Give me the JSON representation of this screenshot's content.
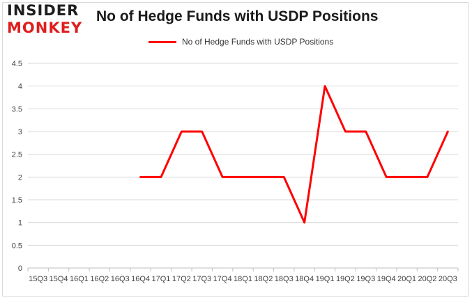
{
  "logo": {
    "line1": "INSIDER",
    "line2": "MONKEY"
  },
  "chart_data": {
    "type": "line",
    "title": "No of Hedge Funds with USDP Positions",
    "xlabel": "",
    "ylabel": "",
    "categories": [
      "15Q3",
      "15Q4",
      "16Q1",
      "16Q2",
      "16Q3",
      "16Q4",
      "17Q1",
      "17Q2",
      "17Q3",
      "17Q4",
      "18Q1",
      "18Q2",
      "18Q3",
      "18Q4",
      "19Q1",
      "19Q2",
      "19Q3",
      "19Q4",
      "20Q1",
      "20Q2",
      "20Q3"
    ],
    "series": [
      {
        "name": "No of Hedge Funds with USDP Positions",
        "values": [
          null,
          null,
          null,
          null,
          null,
          2,
          2,
          3,
          3,
          2,
          2,
          2,
          2,
          1,
          4,
          3,
          3,
          2,
          2,
          2,
          3
        ]
      }
    ],
    "ylim": [
      0,
      4.5
    ],
    "yticks": [
      "0",
      "0.5",
      "1",
      "1.5",
      "2",
      "2.5",
      "3",
      "3.5",
      "4",
      "4.5"
    ],
    "grid": true,
    "legend": "top-center",
    "colors": {
      "series": "#ff0000",
      "grid": "#d9d9d9",
      "axis": "#bfbfbf"
    }
  }
}
